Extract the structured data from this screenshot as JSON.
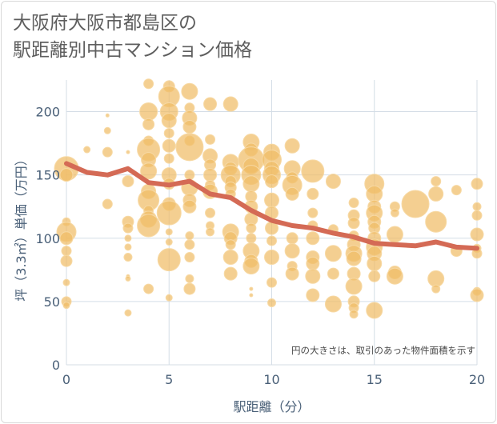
{
  "title": {
    "line1": "大阪府大阪市都島区の",
    "line2": "駅距離別中古マンション価格"
  },
  "note": "円の大きさは、取引のあった物件面積を示す",
  "colors": {
    "bubble": "#f0bd66",
    "bubble_stroke": "#f7d9a4",
    "line": "#d46a55",
    "grid": "#d4dde6",
    "plot_bg": "#ffffff"
  },
  "chart_data": {
    "type": "scatter",
    "xlabel": "駅距離（分）",
    "ylabel": "坪（3.3㎡）単価（万円）",
    "xlim": [
      0,
      20
    ],
    "ylim": [
      0,
      225
    ],
    "xticks": [
      0,
      5,
      10,
      15,
      20
    ],
    "yticks": [
      0,
      50,
      100,
      150,
      200
    ],
    "grid": true,
    "series": [
      {
        "type": "bubble",
        "points": [
          [
            0,
            155,
            15
          ],
          [
            0,
            150,
            8
          ],
          [
            0,
            113,
            5
          ],
          [
            0,
            105,
            12
          ],
          [
            0,
            100,
            8
          ],
          [
            0,
            90,
            6
          ],
          [
            0,
            82,
            7
          ],
          [
            0,
            65,
            4
          ],
          [
            0,
            50,
            6
          ],
          [
            0,
            47,
            4
          ],
          [
            1,
            170,
            4
          ],
          [
            2,
            197,
            2
          ],
          [
            2,
            185,
            4
          ],
          [
            2,
            168,
            6
          ],
          [
            2,
            127,
            6
          ],
          [
            3,
            168,
            2
          ],
          [
            3,
            145,
            7
          ],
          [
            3,
            113,
            7
          ],
          [
            3,
            108,
            6
          ],
          [
            3,
            100,
            4
          ],
          [
            3,
            93,
            4
          ],
          [
            3,
            85,
            5
          ],
          [
            3,
            70,
            2
          ],
          [
            3,
            68,
            3
          ],
          [
            3,
            41,
            4
          ],
          [
            4,
            222,
            6
          ],
          [
            4,
            200,
            11
          ],
          [
            4,
            190,
            7
          ],
          [
            4,
            177,
            6
          ],
          [
            4,
            170,
            14
          ],
          [
            4,
            162,
            9
          ],
          [
            4,
            153,
            10
          ],
          [
            4,
            137,
            9
          ],
          [
            4,
            130,
            13
          ],
          [
            4,
            122,
            6
          ],
          [
            4,
            115,
            10
          ],
          [
            4,
            110,
            14
          ],
          [
            4,
            60,
            6
          ],
          [
            5,
            220,
            7
          ],
          [
            5,
            212,
            13
          ],
          [
            5,
            200,
            11
          ],
          [
            5,
            193,
            9
          ],
          [
            5,
            183,
            6
          ],
          [
            5,
            173,
            8
          ],
          [
            5,
            163,
            6
          ],
          [
            5,
            150,
            9
          ],
          [
            5,
            143,
            7
          ],
          [
            5,
            127,
            8
          ],
          [
            5,
            120,
            15
          ],
          [
            5,
            105,
            4
          ],
          [
            5,
            97,
            4
          ],
          [
            5,
            83,
            14
          ],
          [
            5,
            53,
            4
          ],
          [
            6,
            216,
            10
          ],
          [
            6,
            203,
            6
          ],
          [
            6,
            195,
            9
          ],
          [
            6,
            188,
            8
          ],
          [
            6,
            177,
            6
          ],
          [
            6,
            172,
            17
          ],
          [
            6,
            150,
            6
          ],
          [
            6,
            140,
            10
          ],
          [
            6,
            130,
            8
          ],
          [
            6,
            125,
            8
          ],
          [
            6,
            102,
            5
          ],
          [
            6,
            95,
            6
          ],
          [
            6,
            85,
            6
          ],
          [
            6,
            68,
            5
          ],
          [
            6,
            60,
            7
          ],
          [
            7,
            206,
            8
          ],
          [
            7,
            178,
            6
          ],
          [
            7,
            165,
            9
          ],
          [
            7,
            158,
            7
          ],
          [
            7,
            150,
            8
          ],
          [
            7,
            142,
            6
          ],
          [
            7,
            137,
            9
          ],
          [
            7,
            120,
            6
          ],
          [
            7,
            110,
            5
          ],
          [
            7,
            105,
            5
          ],
          [
            8,
            206,
            9
          ],
          [
            8,
            160,
            10
          ],
          [
            8,
            155,
            8
          ],
          [
            8,
            150,
            12
          ],
          [
            8,
            145,
            7
          ],
          [
            8,
            140,
            7
          ],
          [
            8,
            135,
            6
          ],
          [
            8,
            105,
            10
          ],
          [
            8,
            100,
            8
          ],
          [
            8,
            95,
            6
          ],
          [
            8,
            85,
            9
          ],
          [
            8,
            72,
            8
          ],
          [
            9,
            176,
            10
          ],
          [
            9,
            170,
            8
          ],
          [
            9,
            162,
            16
          ],
          [
            9,
            157,
            10
          ],
          [
            9,
            150,
            12
          ],
          [
            9,
            143,
            10
          ],
          [
            9,
            133,
            7
          ],
          [
            9,
            125,
            8
          ],
          [
            9,
            115,
            8
          ],
          [
            9,
            108,
            6
          ],
          [
            9,
            100,
            6
          ],
          [
            9,
            90,
            10
          ],
          [
            9,
            82,
            8
          ],
          [
            9,
            78,
            10
          ],
          [
            9,
            60,
            2
          ],
          [
            9,
            55,
            2
          ],
          [
            10,
            168,
            10
          ],
          [
            10,
            162,
            12
          ],
          [
            10,
            155,
            9
          ],
          [
            10,
            150,
            11
          ],
          [
            10,
            145,
            8
          ],
          [
            10,
            130,
            9
          ],
          [
            10,
            120,
            8
          ],
          [
            10,
            108,
            8
          ],
          [
            10,
            98,
            6
          ],
          [
            10,
            85,
            9
          ],
          [
            10,
            65,
            6
          ],
          [
            10,
            49,
            5
          ],
          [
            11,
            173,
            9
          ],
          [
            11,
            155,
            10
          ],
          [
            11,
            148,
            7
          ],
          [
            11,
            142,
            12
          ],
          [
            11,
            135,
            8
          ],
          [
            11,
            100,
            7
          ],
          [
            11,
            90,
            9
          ],
          [
            11,
            78,
            6
          ],
          [
            11,
            72,
            8
          ],
          [
            12,
            153,
            14
          ],
          [
            12,
            135,
            7
          ],
          [
            12,
            120,
            6
          ],
          [
            12,
            110,
            6
          ],
          [
            12,
            100,
            8
          ],
          [
            12,
            85,
            8
          ],
          [
            12,
            80,
            8
          ],
          [
            12,
            70,
            9
          ],
          [
            12,
            55,
            8
          ],
          [
            13,
            145,
            9
          ],
          [
            13,
            107,
            6
          ],
          [
            13,
            88,
            10
          ],
          [
            13,
            72,
            7
          ],
          [
            13,
            48,
            10
          ],
          [
            14,
            128,
            6
          ],
          [
            14,
            118,
            7
          ],
          [
            14,
            112,
            7
          ],
          [
            14,
            102,
            6
          ],
          [
            14,
            95,
            8
          ],
          [
            14,
            88,
            10
          ],
          [
            14,
            84,
            9
          ],
          [
            14,
            72,
            8
          ],
          [
            14,
            62,
            10
          ],
          [
            14,
            50,
            7
          ],
          [
            14,
            45,
            6
          ],
          [
            14,
            40,
            5
          ],
          [
            15,
            143,
            12
          ],
          [
            15,
            135,
            10
          ],
          [
            15,
            125,
            8
          ],
          [
            15,
            120,
            10
          ],
          [
            15,
            113,
            8
          ],
          [
            15,
            108,
            7
          ],
          [
            15,
            100,
            8
          ],
          [
            15,
            93,
            10
          ],
          [
            15,
            88,
            9
          ],
          [
            15,
            80,
            9
          ],
          [
            15,
            70,
            7
          ],
          [
            15,
            43,
            10
          ],
          [
            16,
            125,
            6
          ],
          [
            16,
            120,
            5
          ],
          [
            16,
            103,
            10
          ],
          [
            16,
            73,
            8
          ],
          [
            16,
            70,
            10
          ],
          [
            17,
            127,
            17
          ],
          [
            18,
            145,
            6
          ],
          [
            18,
            135,
            9
          ],
          [
            18,
            113,
            13
          ],
          [
            18,
            68,
            10
          ],
          [
            18,
            60,
            5
          ],
          [
            19,
            138,
            6
          ],
          [
            19,
            90,
            7
          ],
          [
            20,
            143,
            7
          ],
          [
            20,
            125,
            5
          ],
          [
            20,
            118,
            6
          ],
          [
            20,
            103,
            8
          ],
          [
            20,
            92,
            5
          ],
          [
            20,
            88,
            6
          ],
          [
            20,
            58,
            5
          ],
          [
            20,
            55,
            8
          ]
        ]
      },
      {
        "type": "line",
        "x": [
          0,
          1,
          2,
          3,
          4,
          5,
          6,
          7,
          8,
          9,
          10,
          11,
          12,
          13,
          14,
          15,
          16,
          17,
          18,
          19,
          20
        ],
        "y": [
          159,
          152,
          150,
          155,
          144,
          142,
          145,
          135,
          132,
          122,
          114,
          110,
          108,
          104,
          101,
          96,
          95,
          94,
          97,
          93,
          92
        ]
      }
    ]
  }
}
